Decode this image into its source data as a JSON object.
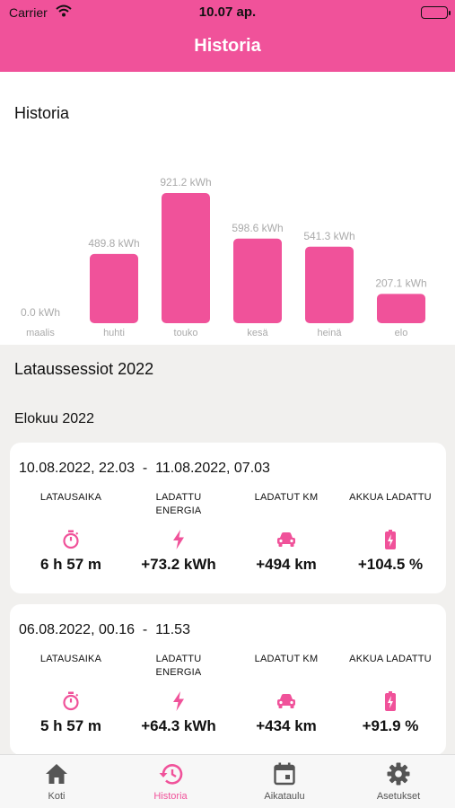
{
  "status_bar": {
    "carrier": "Carrier",
    "time": "10.07 ap."
  },
  "nav": {
    "title": "Historia"
  },
  "chart_data": {
    "type": "bar",
    "title": "Historia",
    "categories": [
      "maalis",
      "huhti",
      "touko",
      "kesä",
      "heinä",
      "elo"
    ],
    "values": [
      0.0,
      489.8,
      921.2,
      598.6,
      541.3,
      207.1
    ],
    "value_labels": [
      "0.0 kWh",
      "489.8 kWh",
      "921.2 kWh",
      "598.6 kWh",
      "541.3 kWh",
      "207.1 kWh"
    ],
    "unit": "kWh",
    "color": "#f0529a",
    "label_color": "#aaaaaa"
  },
  "sessions_title": "Lataussessiot 2022",
  "month_title": "Elokuu 2022",
  "stat_labels": {
    "time": "LATAUSAIKA",
    "energy_1": "LADATTU",
    "energy_2": "ENERGIA",
    "km": "LADATUT KM",
    "battery": "AKKUA LADATTU"
  },
  "sessions": [
    {
      "range": "10.08.2022, 22.03  -  11.08.2022, 07.03",
      "time": "6 h 57 m",
      "energy": "+73.2 kWh",
      "km": "+494 km",
      "battery": "+104.5 %"
    },
    {
      "range": "06.08.2022, 00.16  -  11.53",
      "time": "5 h 57 m",
      "energy": "+64.3 kWh",
      "km": "+434 km",
      "battery": "+91.9 %"
    }
  ],
  "tabs": [
    {
      "label": "Koti",
      "icon": "home-icon",
      "active": false
    },
    {
      "label": "Historia",
      "icon": "history-icon",
      "active": true
    },
    {
      "label": "Aikataulu",
      "icon": "calendar-icon",
      "active": false
    },
    {
      "label": "Asetukset",
      "icon": "gear-icon",
      "active": false
    }
  ],
  "colors": {
    "accent": "#f0529a",
    "background": "#f1f0ee",
    "tab_inactive": "#555555"
  }
}
